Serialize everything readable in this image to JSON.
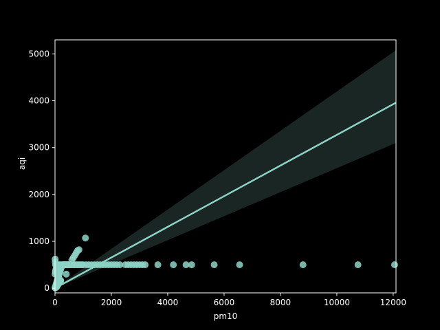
{
  "chart_data": {
    "type": "scatter",
    "title": "",
    "xlabel": "pm10",
    "ylabel": "aqi",
    "xlim": [
      0,
      12100
    ],
    "ylim": [
      -100,
      5300
    ],
    "xticks": [
      0,
      2000,
      4000,
      6000,
      8000,
      10000,
      12000
    ],
    "yticks": [
      0,
      1000,
      2000,
      3000,
      4000,
      5000
    ],
    "xtick_labels": [
      "0",
      "2000",
      "4000",
      "6000",
      "8000",
      "10000",
      "12000"
    ],
    "ytick_labels": [
      "0",
      "1000",
      "2000",
      "3000",
      "4000",
      "5000"
    ],
    "grid": false,
    "colors": {
      "background": "#000000",
      "points": "#8dd3c7",
      "regression_line": "#8dd3c7",
      "confidence_band": "#1a2624",
      "axes": "#ffffff"
    },
    "series": [
      {
        "kind": "points",
        "x": [
          10,
          20,
          30,
          40,
          50,
          60,
          70,
          80,
          90,
          100,
          120,
          140,
          160,
          180,
          200,
          220,
          240,
          260,
          280,
          300,
          320,
          340,
          360,
          380,
          400,
          420,
          440,
          460,
          480,
          500,
          550,
          600,
          650,
          700,
          750,
          800,
          850,
          900,
          950,
          1000,
          1100,
          1200,
          1300,
          1400,
          1500,
          1600,
          1700,
          1800,
          1900,
          2000,
          2100,
          2200,
          2300,
          2500,
          2600,
          2700,
          2800,
          2900,
          3000,
          3100,
          3200,
          3650,
          4200,
          4650,
          4850,
          5650,
          6550,
          8800,
          10750,
          12050,
          20,
          40,
          60,
          80,
          100,
          150,
          200,
          250,
          300,
          350,
          400,
          450,
          500,
          200,
          400,
          600,
          650,
          700,
          750,
          800,
          850,
          1080,
          20,
          40,
          60,
          80,
          100,
          120,
          140,
          160,
          180,
          200,
          5,
          15,
          25,
          35,
          45,
          55,
          65,
          75,
          85,
          95,
          5,
          10,
          5
        ],
        "y": [
          20,
          40,
          60,
          80,
          100,
          120,
          140,
          160,
          180,
          200,
          240,
          280,
          320,
          360,
          400,
          440,
          470,
          490,
          500,
          500,
          500,
          500,
          500,
          500,
          500,
          500,
          500,
          500,
          500,
          500,
          500,
          500,
          500,
          500,
          500,
          500,
          500,
          500,
          500,
          500,
          500,
          500,
          500,
          500,
          500,
          500,
          500,
          500,
          500,
          500,
          500,
          500,
          500,
          500,
          500,
          500,
          500,
          500,
          500,
          500,
          500,
          500,
          500,
          500,
          500,
          500,
          500,
          500,
          500,
          500,
          500,
          500,
          500,
          500,
          500,
          500,
          500,
          500,
          500,
          500,
          500,
          500,
          500,
          150,
          300,
          600,
          650,
          700,
          750,
          800,
          820,
          1070,
          10,
          20,
          30,
          50,
          70,
          90,
          110,
          130,
          150,
          170,
          300,
          350,
          380,
          400,
          420,
          440,
          450,
          460,
          470,
          480,
          620,
          560,
          5
        ]
      },
      {
        "kind": "regression",
        "x": [
          0,
          12100
        ],
        "y": [
          0,
          3960
        ],
        "ci_lower_at_xmax": 3100,
        "ci_upper_at_xmax": 5080
      }
    ]
  }
}
